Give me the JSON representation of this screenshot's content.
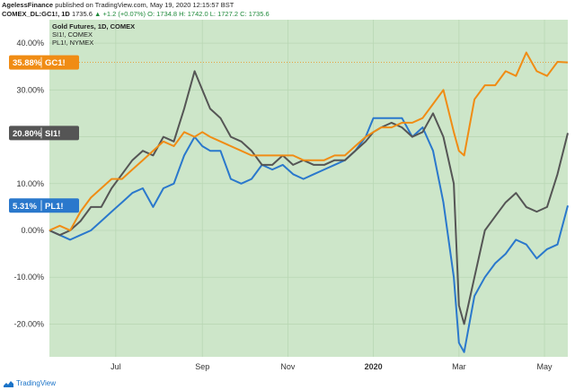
{
  "header": {
    "author": "AgelessFinance",
    "published": "published on TradingView.com, May 19, 2020 12:15:57 BST",
    "symbol": "COMEX_DL:GC1!, 1D",
    "last": "1735.6",
    "change": "▲ +1.2 (+0.07%)",
    "ohlc": "O: 1734.8  H: 1742.0  L: 1727.2  C: 1735.6"
  },
  "legend": {
    "line1": "Gold Futures, 1D, COMEX",
    "line2": "SI1!, COMEX",
    "line3": "PL1!, NYMEX"
  },
  "footer": {
    "brand": "TradingView",
    "icon": "tradingview-logo-icon"
  },
  "colors": {
    "plot_bg": "#cde6c9",
    "gold": "#f08c14",
    "silver": "#555555",
    "platinum": "#2a78cc",
    "grid": "#b9d7b4",
    "axis_bg": "#ffffff",
    "text": "#333333"
  },
  "chart_data": {
    "type": "line",
    "x_tick_labels": [
      "Jul",
      "Sep",
      "Nov",
      "2020",
      "Mar",
      "May"
    ],
    "x_tick_positions": [
      0.128,
      0.295,
      0.46,
      0.625,
      0.79,
      0.955
    ],
    "y_tick_labels": [
      "40.00%",
      "30.00%",
      "20.00%",
      "10.00%",
      "0.00%",
      "-10.00%",
      "-20.00%"
    ],
    "y_ticks": [
      40,
      30,
      20,
      10,
      0,
      -10,
      -20
    ],
    "ylim": [
      -27,
      45
    ],
    "xlim": [
      0,
      1
    ],
    "series": [
      {
        "name": "GC1!",
        "badge_label": "35.88%",
        "badge_name": "GC1!",
        "last_value": 35.88,
        "points": [
          [
            0,
            0
          ],
          [
            0.02,
            1
          ],
          [
            0.04,
            0
          ],
          [
            0.06,
            4
          ],
          [
            0.08,
            7
          ],
          [
            0.1,
            9
          ],
          [
            0.12,
            11
          ],
          [
            0.14,
            11
          ],
          [
            0.16,
            13
          ],
          [
            0.18,
            15
          ],
          [
            0.2,
            17
          ],
          [
            0.22,
            19
          ],
          [
            0.24,
            18
          ],
          [
            0.26,
            21
          ],
          [
            0.28,
            20
          ],
          [
            0.295,
            21
          ],
          [
            0.31,
            20
          ],
          [
            0.33,
            19
          ],
          [
            0.35,
            18
          ],
          [
            0.37,
            17
          ],
          [
            0.39,
            16
          ],
          [
            0.41,
            16
          ],
          [
            0.43,
            16
          ],
          [
            0.45,
            16
          ],
          [
            0.47,
            16
          ],
          [
            0.49,
            15
          ],
          [
            0.51,
            15
          ],
          [
            0.53,
            15
          ],
          [
            0.55,
            16
          ],
          [
            0.57,
            16
          ],
          [
            0.59,
            18
          ],
          [
            0.61,
            20
          ],
          [
            0.625,
            21
          ],
          [
            0.64,
            22
          ],
          [
            0.66,
            22
          ],
          [
            0.68,
            23
          ],
          [
            0.7,
            23
          ],
          [
            0.72,
            24
          ],
          [
            0.74,
            27
          ],
          [
            0.76,
            30
          ],
          [
            0.78,
            21
          ],
          [
            0.79,
            17
          ],
          [
            0.8,
            16
          ],
          [
            0.82,
            28
          ],
          [
            0.84,
            31
          ],
          [
            0.86,
            31
          ],
          [
            0.88,
            34
          ],
          [
            0.9,
            33
          ],
          [
            0.92,
            38
          ],
          [
            0.94,
            34
          ],
          [
            0.96,
            33
          ],
          [
            0.98,
            36
          ],
          [
            1.0,
            35.88
          ]
        ]
      },
      {
        "name": "SI1!",
        "badge_label": "20.80%",
        "badge_name": "SI1!",
        "last_value": 20.8,
        "points": [
          [
            0,
            0
          ],
          [
            0.02,
            -1
          ],
          [
            0.04,
            0
          ],
          [
            0.06,
            2
          ],
          [
            0.08,
            5
          ],
          [
            0.1,
            5
          ],
          [
            0.12,
            9
          ],
          [
            0.14,
            12
          ],
          [
            0.16,
            15
          ],
          [
            0.18,
            17
          ],
          [
            0.2,
            16
          ],
          [
            0.22,
            20
          ],
          [
            0.24,
            19
          ],
          [
            0.26,
            26
          ],
          [
            0.28,
            34
          ],
          [
            0.295,
            30
          ],
          [
            0.31,
            26
          ],
          [
            0.33,
            24
          ],
          [
            0.35,
            20
          ],
          [
            0.37,
            19
          ],
          [
            0.39,
            17
          ],
          [
            0.41,
            14
          ],
          [
            0.43,
            14
          ],
          [
            0.45,
            16
          ],
          [
            0.47,
            14
          ],
          [
            0.49,
            15
          ],
          [
            0.51,
            14
          ],
          [
            0.53,
            14
          ],
          [
            0.55,
            15
          ],
          [
            0.57,
            15
          ],
          [
            0.59,
            17
          ],
          [
            0.61,
            19
          ],
          [
            0.625,
            21
          ],
          [
            0.64,
            22
          ],
          [
            0.66,
            23
          ],
          [
            0.68,
            22
          ],
          [
            0.7,
            20
          ],
          [
            0.72,
            21
          ],
          [
            0.74,
            25
          ],
          [
            0.76,
            20
          ],
          [
            0.78,
            10
          ],
          [
            0.79,
            -16
          ],
          [
            0.8,
            -20
          ],
          [
            0.82,
            -10
          ],
          [
            0.84,
            0
          ],
          [
            0.86,
            3
          ],
          [
            0.88,
            6
          ],
          [
            0.9,
            8
          ],
          [
            0.92,
            5
          ],
          [
            0.94,
            4
          ],
          [
            0.96,
            5
          ],
          [
            0.98,
            12
          ],
          [
            1.0,
            20.8
          ]
        ]
      },
      {
        "name": "PL1!",
        "badge_label": "5.31%",
        "badge_name": "PL1!",
        "last_value": 5.31,
        "points": [
          [
            0,
            0
          ],
          [
            0.02,
            -1
          ],
          [
            0.04,
            -2
          ],
          [
            0.06,
            -1
          ],
          [
            0.08,
            0
          ],
          [
            0.1,
            2
          ],
          [
            0.12,
            4
          ],
          [
            0.14,
            6
          ],
          [
            0.16,
            8
          ],
          [
            0.18,
            9
          ],
          [
            0.2,
            5
          ],
          [
            0.22,
            9
          ],
          [
            0.24,
            10
          ],
          [
            0.26,
            16
          ],
          [
            0.28,
            20
          ],
          [
            0.295,
            18
          ],
          [
            0.31,
            17
          ],
          [
            0.33,
            17
          ],
          [
            0.35,
            11
          ],
          [
            0.37,
            10
          ],
          [
            0.39,
            11
          ],
          [
            0.41,
            14
          ],
          [
            0.43,
            13
          ],
          [
            0.45,
            14
          ],
          [
            0.47,
            12
          ],
          [
            0.49,
            11
          ],
          [
            0.51,
            12
          ],
          [
            0.53,
            13
          ],
          [
            0.55,
            14
          ],
          [
            0.57,
            15
          ],
          [
            0.59,
            17
          ],
          [
            0.61,
            20
          ],
          [
            0.625,
            24
          ],
          [
            0.64,
            24
          ],
          [
            0.66,
            24
          ],
          [
            0.68,
            24
          ],
          [
            0.7,
            20
          ],
          [
            0.72,
            22
          ],
          [
            0.74,
            17
          ],
          [
            0.76,
            6
          ],
          [
            0.78,
            -10
          ],
          [
            0.79,
            -24
          ],
          [
            0.8,
            -26
          ],
          [
            0.82,
            -14
          ],
          [
            0.84,
            -10
          ],
          [
            0.86,
            -7
          ],
          [
            0.88,
            -5
          ],
          [
            0.9,
            -2
          ],
          [
            0.92,
            -3
          ],
          [
            0.94,
            -6
          ],
          [
            0.96,
            -4
          ],
          [
            0.98,
            -3
          ],
          [
            1.0,
            5.31
          ]
        ]
      }
    ]
  }
}
